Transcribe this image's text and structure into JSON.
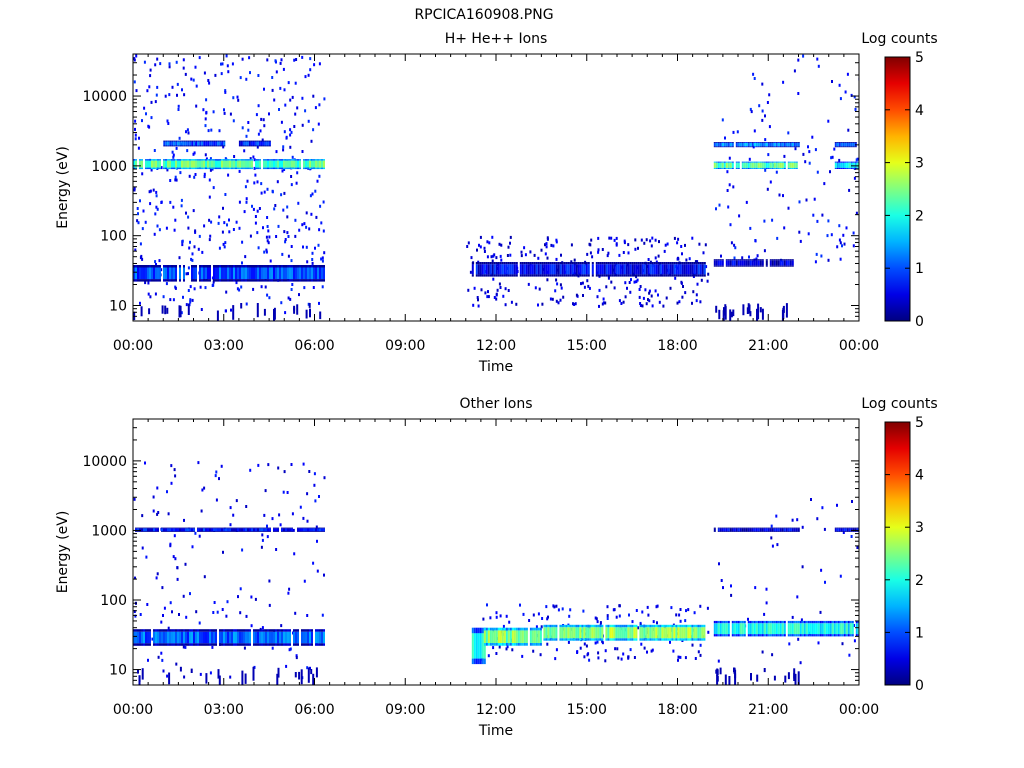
{
  "figure_title": "RPCICA160908.PNG",
  "chart_data": [
    {
      "type": "heatmap",
      "title": "H+ He++ Ions",
      "xlabel": "Time",
      "ylabel": "Energy (eV)",
      "x_ticks": [
        "00:00",
        "03:00",
        "06:00",
        "09:00",
        "12:00",
        "15:00",
        "18:00",
        "21:00",
        "00:00"
      ],
      "x_range_hours": [
        0,
        24
      ],
      "y_scale": "log",
      "y_ticks": [
        {
          "value": 10,
          "label": "10"
        },
        {
          "value": 100,
          "label": "100"
        },
        {
          "value": 1000,
          "label": "1000"
        },
        {
          "value": 10000,
          "label": "10000"
        }
      ],
      "y_range": [
        6,
        40000
      ],
      "colorbar": {
        "label": "Log counts",
        "range": [
          0,
          5
        ],
        "ticks": [
          "0",
          "1",
          "2",
          "3",
          "4",
          "5"
        ],
        "colormap": "jet"
      },
      "bands": [
        {
          "t0": 0.0,
          "t1": 6.3,
          "e0": 900,
          "e1": 1250,
          "level": 2.3
        },
        {
          "t0": 1.0,
          "t1": 3.0,
          "e0": 1900,
          "e1": 2300,
          "level": 1.0
        },
        {
          "t0": 3.5,
          "t1": 4.5,
          "e0": 1900,
          "e1": 2300,
          "level": 0.8
        },
        {
          "t0": 0.0,
          "t1": 6.3,
          "e0": 22,
          "e1": 38,
          "level": 1.0
        },
        {
          "t0": 11.2,
          "t1": 18.9,
          "e0": 26,
          "e1": 42,
          "level": 0.6
        },
        {
          "t0": 19.2,
          "t1": 22.0,
          "e0": 900,
          "e1": 1150,
          "level": 2.3
        },
        {
          "t0": 23.2,
          "t1": 24.0,
          "e0": 900,
          "e1": 1150,
          "level": 1.8
        },
        {
          "t0": 19.2,
          "t1": 22.0,
          "e0": 1850,
          "e1": 2200,
          "level": 1.3
        },
        {
          "t0": 23.2,
          "t1": 24.0,
          "e0": 1850,
          "e1": 2200,
          "level": 1.0
        },
        {
          "t0": 19.2,
          "t1": 21.8,
          "e0": 36,
          "e1": 46,
          "level": 0.4
        }
      ],
      "scatter_regions": [
        {
          "t0": 0.0,
          "t1": 6.3,
          "e0": 8,
          "e1": 40000,
          "density": 0.06,
          "level": 0.4
        },
        {
          "t0": 11.0,
          "t1": 19.0,
          "e0": 10,
          "e1": 100,
          "density": 0.1,
          "level": 0.2
        },
        {
          "t0": 19.2,
          "t1": 24.0,
          "e0": 40,
          "e1": 40000,
          "density": 0.025,
          "level": 0.4
        }
      ]
    },
    {
      "type": "heatmap",
      "title": "Other Ions",
      "xlabel": "Time",
      "ylabel": "Energy (eV)",
      "x_ticks": [
        "00:00",
        "03:00",
        "06:00",
        "09:00",
        "12:00",
        "15:00",
        "18:00",
        "21:00",
        "00:00"
      ],
      "x_range_hours": [
        0,
        24
      ],
      "y_scale": "log",
      "y_ticks": [
        {
          "value": 10,
          "label": "10"
        },
        {
          "value": 100,
          "label": "100"
        },
        {
          "value": 1000,
          "label": "1000"
        },
        {
          "value": 10000,
          "label": "10000"
        }
      ],
      "y_range": [
        6,
        40000
      ],
      "colorbar": {
        "label": "Log counts",
        "range": [
          0,
          5
        ],
        "ticks": [
          "0",
          "1",
          "2",
          "3",
          "4",
          "5"
        ],
        "colormap": "jet"
      },
      "bands": [
        {
          "t0": 0.0,
          "t1": 6.3,
          "e0": 950,
          "e1": 1100,
          "level": 0.7
        },
        {
          "t0": 0.0,
          "t1": 6.3,
          "e0": 22,
          "e1": 38,
          "level": 1.1
        },
        {
          "t0": 11.2,
          "t1": 11.6,
          "e0": 12,
          "e1": 40,
          "level": 2.0
        },
        {
          "t0": 11.6,
          "t1": 13.5,
          "e0": 22,
          "e1": 40,
          "level": 2.5
        },
        {
          "t0": 13.5,
          "t1": 18.9,
          "e0": 26,
          "e1": 44,
          "level": 2.6
        },
        {
          "t0": 19.2,
          "t1": 22.0,
          "e0": 950,
          "e1": 1100,
          "level": 0.5
        },
        {
          "t0": 23.2,
          "t1": 24.0,
          "e0": 950,
          "e1": 1100,
          "level": 0.5
        },
        {
          "t0": 19.2,
          "t1": 24.0,
          "e0": 30,
          "e1": 50,
          "level": 1.9
        }
      ],
      "scatter_regions": [
        {
          "t0": 0.0,
          "t1": 6.3,
          "e0": 8,
          "e1": 10000,
          "density": 0.025,
          "level": 0.3
        },
        {
          "t0": 11.5,
          "t1": 19.0,
          "e0": 14,
          "e1": 90,
          "density": 0.08,
          "level": 0.3
        },
        {
          "t0": 19.2,
          "t1": 24.0,
          "e0": 10,
          "e1": 3000,
          "density": 0.012,
          "level": 0.3
        }
      ]
    }
  ]
}
